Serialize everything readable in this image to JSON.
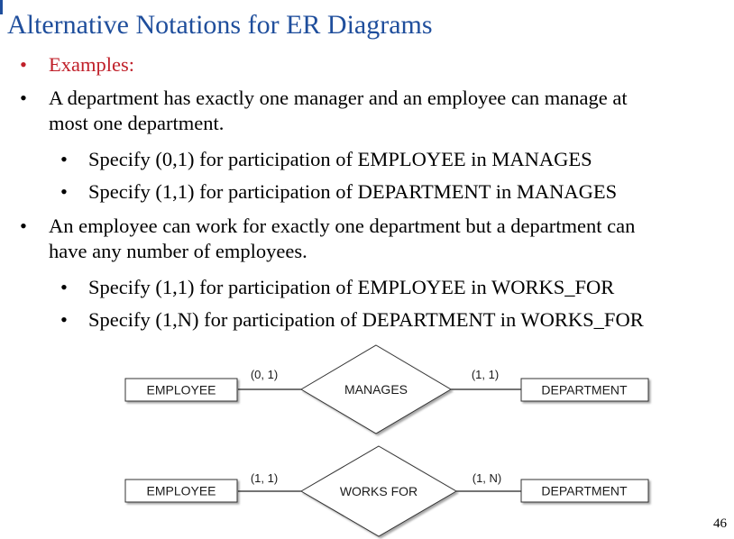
{
  "slide": {
    "title": "Alternative Notations for ER Diagrams",
    "page_number": "46",
    "colors": {
      "title": "#1f4e9c",
      "examples": "#c0202a",
      "text": "#000000"
    }
  },
  "bullets": {
    "examples": "Examples:",
    "b1_line1": "A department has exactly one manager and an employee can manage at",
    "b1_line2": "most one department.",
    "b1_sub1": "Specify (0,1) for participation of EMPLOYEE in MANAGES",
    "b1_sub2": "Specify (1,1) for participation of DEPARTMENT in MANAGES",
    "b2_line1": "An employee can work for exactly one department but a department can",
    "b2_line2": "have any number of employees.",
    "b2_sub1": "Specify (1,1) for participation of EMPLOYEE in WORKS_FOR",
    "b2_sub2": "Specify (1,N) for participation of DEPARTMENT in WORKS_FOR"
  },
  "diagram": {
    "top": {
      "left_entity": "EMPLOYEE",
      "relationship": "MANAGES",
      "right_entity": "DEPARTMENT",
      "left_card": "(0, 1)",
      "right_card": "(1, 1)"
    },
    "bottom": {
      "left_entity": "EMPLOYEE",
      "relationship": "WORKS FOR",
      "right_entity": "DEPARTMENT",
      "left_card": "(1, 1)",
      "right_card": "(1, N)"
    }
  }
}
